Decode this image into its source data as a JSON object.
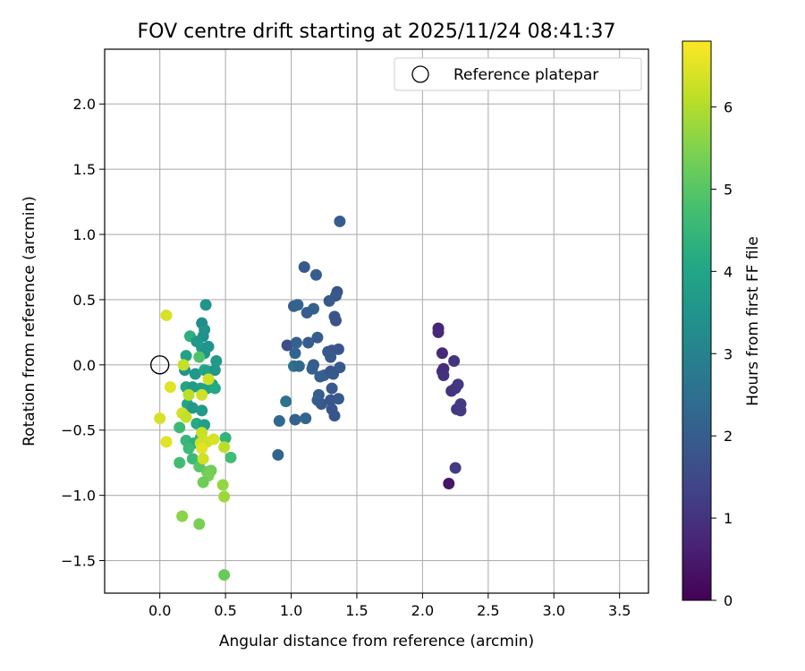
{
  "chart_data": {
    "type": "scatter",
    "title": "FOV centre drift starting at 2025/11/24 08:41:37",
    "xlabel": "Angular distance from reference (arcmin)",
    "ylabel": "Rotation from reference (arcmin)",
    "xlim": [
      -0.42,
      3.72
    ],
    "ylim": [
      -1.75,
      2.42
    ],
    "xticks": [
      0.0,
      0.5,
      1.0,
      1.5,
      2.0,
      2.5,
      3.0,
      3.5
    ],
    "xtick_labels": [
      "0.0",
      "0.5",
      "1.0",
      "1.5",
      "2.0",
      "2.5",
      "3.0",
      "3.5"
    ],
    "yticks": [
      -1.5,
      -1.0,
      -0.5,
      0.0,
      0.5,
      1.0,
      1.5,
      2.0
    ],
    "ytick_labels": [
      "−1.5",
      "−1.0",
      "−0.5",
      "0.0",
      "0.5",
      "1.0",
      "1.5",
      "2.0"
    ],
    "grid": true,
    "legend": {
      "position": "top-right",
      "label": "Reference platepar"
    },
    "reference_point": {
      "x": 0.0,
      "y": 0.0
    },
    "colorbar": {
      "label": "Hours from first FF file",
      "colormap": "viridis",
      "min": 0,
      "max": 6.8,
      "ticks": [
        0,
        1,
        2,
        3,
        4,
        5,
        6
      ],
      "tick_labels": [
        "0",
        "1",
        "2",
        "3",
        "4",
        "5",
        "6"
      ]
    },
    "points": [
      {
        "x": 2.12,
        "y": 0.28,
        "t": 0.7
      },
      {
        "x": 2.12,
        "y": 0.25,
        "t": 0.75
      },
      {
        "x": 2.15,
        "y": 0.09,
        "t": 0.8
      },
      {
        "x": 2.16,
        "y": -0.03,
        "t": 0.85
      },
      {
        "x": 2.15,
        "y": -0.05,
        "t": 0.9
      },
      {
        "x": 2.16,
        "y": -0.08,
        "t": 0.95
      },
      {
        "x": 2.2,
        "y": -0.91,
        "t": 0.4
      },
      {
        "x": 2.22,
        "y": -0.2,
        "t": 1.0
      },
      {
        "x": 2.25,
        "y": -0.18,
        "t": 1.05
      },
      {
        "x": 2.27,
        "y": -0.15,
        "t": 1.1
      },
      {
        "x": 2.24,
        "y": 0.03,
        "t": 1.0
      },
      {
        "x": 2.26,
        "y": -0.34,
        "t": 1.1
      },
      {
        "x": 2.29,
        "y": -0.35,
        "t": 1.15
      },
      {
        "x": 2.29,
        "y": -0.3,
        "t": 1.15
      },
      {
        "x": 2.25,
        "y": -0.79,
        "t": 1.2
      },
      {
        "x": 1.37,
        "y": 1.1,
        "t": 2.0
      },
      {
        "x": 1.1,
        "y": 0.75,
        "t": 1.9
      },
      {
        "x": 1.19,
        "y": 0.69,
        "t": 2.0
      },
      {
        "x": 1.35,
        "y": 0.56,
        "t": 1.8
      },
      {
        "x": 1.34,
        "y": 0.53,
        "t": 1.85
      },
      {
        "x": 1.29,
        "y": 0.49,
        "t": 1.9
      },
      {
        "x": 1.02,
        "y": 0.45,
        "t": 2.0
      },
      {
        "x": 1.05,
        "y": 0.46,
        "t": 2.2
      },
      {
        "x": 1.17,
        "y": 0.43,
        "t": 2.1
      },
      {
        "x": 1.12,
        "y": 0.4,
        "t": 2.0
      },
      {
        "x": 1.33,
        "y": 0.37,
        "t": 1.8
      },
      {
        "x": 1.34,
        "y": 0.34,
        "t": 1.7
      },
      {
        "x": 0.97,
        "y": 0.15,
        "t": 1.6
      },
      {
        "x": 1.04,
        "y": 0.17,
        "t": 2.1
      },
      {
        "x": 1.13,
        "y": 0.17,
        "t": 2.0
      },
      {
        "x": 1.2,
        "y": 0.21,
        "t": 2.0
      },
      {
        "x": 1.03,
        "y": 0.09,
        "t": 2.2
      },
      {
        "x": 1.28,
        "y": 0.1,
        "t": 1.9
      },
      {
        "x": 1.31,
        "y": 0.11,
        "t": 1.8
      },
      {
        "x": 1.36,
        "y": 0.12,
        "t": 1.8
      },
      {
        "x": 1.3,
        "y": 0.06,
        "t": 1.9
      },
      {
        "x": 1.02,
        "y": -0.01,
        "t": 2.5
      },
      {
        "x": 1.06,
        "y": -0.01,
        "t": 2.3
      },
      {
        "x": 1.16,
        "y": -0.03,
        "t": 2.1
      },
      {
        "x": 1.17,
        "y": 0.0,
        "t": 2.0
      },
      {
        "x": 1.37,
        "y": -0.02,
        "t": 1.9
      },
      {
        "x": 1.22,
        "y": -0.09,
        "t": 2.0
      },
      {
        "x": 1.25,
        "y": -0.08,
        "t": 2.1
      },
      {
        "x": 1.3,
        "y": -0.05,
        "t": 1.8
      },
      {
        "x": 1.32,
        "y": -0.07,
        "t": 1.9
      },
      {
        "x": 1.31,
        "y": -0.18,
        "t": 1.9
      },
      {
        "x": 1.21,
        "y": -0.23,
        "t": 2.0
      },
      {
        "x": 1.2,
        "y": -0.27,
        "t": 2.1
      },
      {
        "x": 1.23,
        "y": -0.3,
        "t": 1.9
      },
      {
        "x": 1.3,
        "y": -0.27,
        "t": 1.8
      },
      {
        "x": 1.36,
        "y": -0.26,
        "t": 1.9
      },
      {
        "x": 1.31,
        "y": -0.34,
        "t": 1.8
      },
      {
        "x": 1.33,
        "y": -0.39,
        "t": 1.8
      },
      {
        "x": 0.96,
        "y": -0.28,
        "t": 2.6
      },
      {
        "x": 1.03,
        "y": -0.42,
        "t": 2.1
      },
      {
        "x": 1.11,
        "y": -0.41,
        "t": 2.2
      },
      {
        "x": 0.91,
        "y": -0.43,
        "t": 2.3
      },
      {
        "x": 0.9,
        "y": -0.69,
        "t": 2.2
      },
      {
        "x": 0.35,
        "y": 0.46,
        "t": 3.5
      },
      {
        "x": 0.32,
        "y": 0.32,
        "t": 3.3
      },
      {
        "x": 0.34,
        "y": 0.27,
        "t": 3.5
      },
      {
        "x": 0.33,
        "y": 0.22,
        "t": 3.4
      },
      {
        "x": 0.23,
        "y": 0.22,
        "t": 4.3
      },
      {
        "x": 0.28,
        "y": 0.18,
        "t": 3.6
      },
      {
        "x": 0.32,
        "y": 0.13,
        "t": 3.7
      },
      {
        "x": 0.37,
        "y": 0.14,
        "t": 3.5
      },
      {
        "x": 0.34,
        "y": 0.09,
        "t": 3.5
      },
      {
        "x": 0.2,
        "y": 0.07,
        "t": 3.9
      },
      {
        "x": 0.3,
        "y": 0.06,
        "t": 4.9
      },
      {
        "x": 0.43,
        "y": 0.03,
        "t": 3.6
      },
      {
        "x": 0.19,
        "y": -0.04,
        "t": 3.5
      },
      {
        "x": 0.27,
        "y": -0.07,
        "t": 3.6
      },
      {
        "x": 0.34,
        "y": -0.04,
        "t": 4.0
      },
      {
        "x": 0.37,
        "y": -0.05,
        "t": 3.9
      },
      {
        "x": 0.42,
        "y": -0.04,
        "t": 3.6
      },
      {
        "x": 0.2,
        "y": -0.17,
        "t": 4.0
      },
      {
        "x": 0.25,
        "y": -0.17,
        "t": 3.7
      },
      {
        "x": 0.31,
        "y": -0.18,
        "t": 3.8
      },
      {
        "x": 0.36,
        "y": -0.18,
        "t": 3.9
      },
      {
        "x": 0.4,
        "y": -0.15,
        "t": 3.8
      },
      {
        "x": 0.42,
        "y": -0.18,
        "t": 4.1
      },
      {
        "x": 0.21,
        "y": -0.3,
        "t": 4.0
      },
      {
        "x": 0.25,
        "y": -0.33,
        "t": 3.6
      },
      {
        "x": 0.32,
        "y": -0.35,
        "t": 3.7
      },
      {
        "x": 0.15,
        "y": -0.48,
        "t": 4.6
      },
      {
        "x": 0.28,
        "y": -0.45,
        "t": 4.1
      },
      {
        "x": 0.34,
        "y": -0.46,
        "t": 3.8
      },
      {
        "x": 0.2,
        "y": -0.58,
        "t": 4.5
      },
      {
        "x": 0.26,
        "y": -0.6,
        "t": 4.3
      },
      {
        "x": 0.22,
        "y": -0.64,
        "t": 4.6
      },
      {
        "x": 0.31,
        "y": -0.56,
        "t": 4.5
      },
      {
        "x": 0.25,
        "y": -0.72,
        "t": 4.6
      },
      {
        "x": 0.5,
        "y": -0.56,
        "t": 4.4
      },
      {
        "x": 0.54,
        "y": -0.71,
        "t": 4.7
      },
      {
        "x": 0.15,
        "y": -0.75,
        "t": 4.7
      },
      {
        "x": 0.3,
        "y": -0.78,
        "t": 5.0
      },
      {
        "x": 0.36,
        "y": -0.82,
        "t": 5.2
      },
      {
        "x": 0.39,
        "y": -0.81,
        "t": 5.3
      },
      {
        "x": 0.37,
        "y": -0.85,
        "t": 5.4
      },
      {
        "x": 0.33,
        "y": -0.9,
        "t": 5.3
      },
      {
        "x": 0.48,
        "y": -0.92,
        "t": 5.7
      },
      {
        "x": 0.49,
        "y": -1.01,
        "t": 5.8
      },
      {
        "x": 0.17,
        "y": -1.16,
        "t": 5.6
      },
      {
        "x": 0.3,
        "y": -1.22,
        "t": 5.4
      },
      {
        "x": 0.49,
        "y": -1.61,
        "t": 5.2
      },
      {
        "x": 0.05,
        "y": 0.38,
        "t": 6.4
      },
      {
        "x": 0.18,
        "y": 0.0,
        "t": 6.2
      },
      {
        "x": 0.08,
        "y": -0.17,
        "t": 6.5
      },
      {
        "x": 0.22,
        "y": -0.23,
        "t": 6.1
      },
      {
        "x": 0.32,
        "y": -0.23,
        "t": 6.3
      },
      {
        "x": 0.37,
        "y": -0.11,
        "t": 6.3
      },
      {
        "x": 0.0,
        "y": -0.41,
        "t": 6.4
      },
      {
        "x": 0.17,
        "y": -0.37,
        "t": 6.3
      },
      {
        "x": 0.2,
        "y": -0.4,
        "t": 6.2
      },
      {
        "x": 0.32,
        "y": -0.52,
        "t": 6.2
      },
      {
        "x": 0.05,
        "y": -0.59,
        "t": 6.5
      },
      {
        "x": 0.31,
        "y": -0.6,
        "t": 6.3
      },
      {
        "x": 0.36,
        "y": -0.59,
        "t": 6.3
      },
      {
        "x": 0.41,
        "y": -0.57,
        "t": 6.4
      },
      {
        "x": 0.49,
        "y": -0.63,
        "t": 6.1
      },
      {
        "x": 0.32,
        "y": -0.64,
        "t": 6.5
      },
      {
        "x": 0.33,
        "y": -0.72,
        "t": 6.3
      }
    ]
  }
}
